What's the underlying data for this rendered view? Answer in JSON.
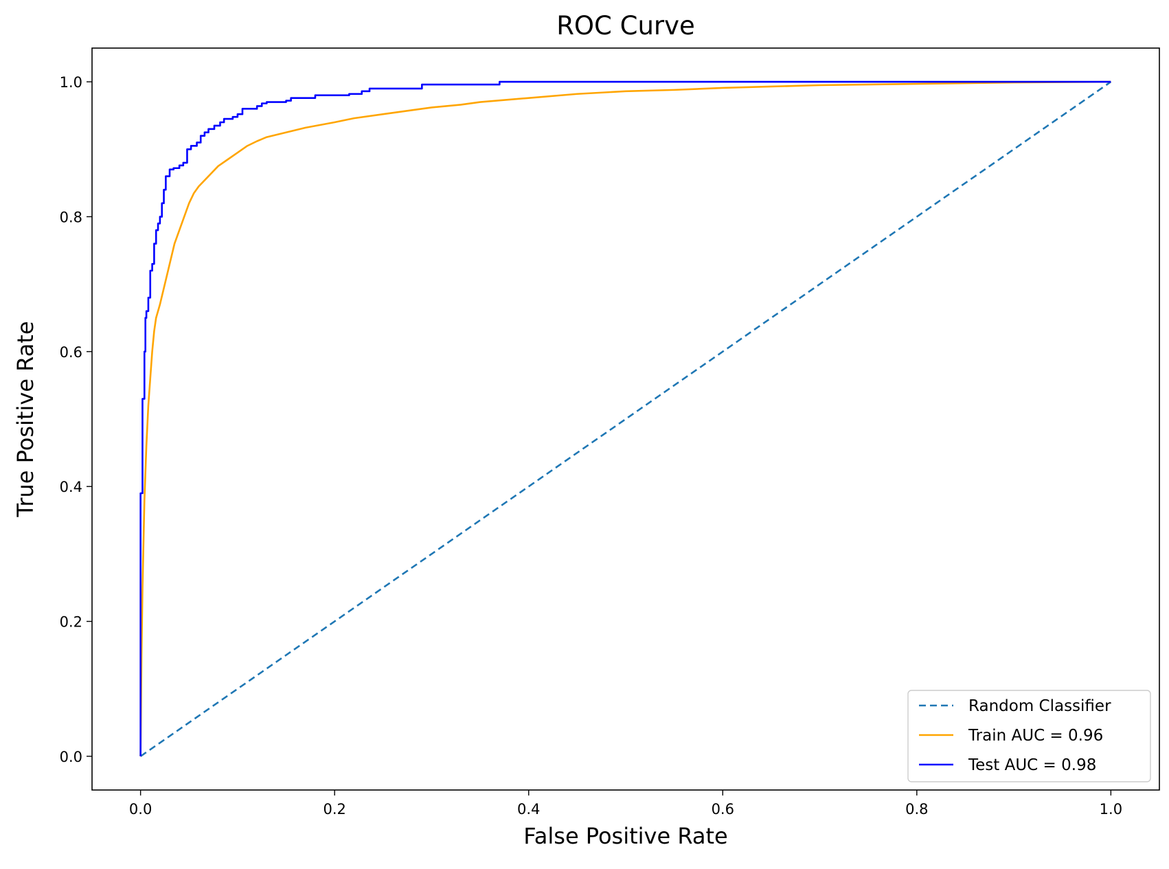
{
  "chart_data": {
    "type": "line",
    "title": "ROC Curve",
    "xlabel": "False Positive Rate",
    "ylabel": "True Positive Rate",
    "xlim": [
      -0.05,
      1.05
    ],
    "ylim": [
      -0.05,
      1.05
    ],
    "xticks": [
      0.0,
      0.2,
      0.4,
      0.6,
      0.8,
      1.0
    ],
    "yticks": [
      0.0,
      0.2,
      0.4,
      0.6,
      0.8,
      1.0
    ],
    "xtick_labels": [
      "0.0",
      "0.2",
      "0.4",
      "0.6",
      "0.8",
      "1.0"
    ],
    "ytick_labels": [
      "0.0",
      "0.2",
      "0.4",
      "0.6",
      "0.8",
      "1.0"
    ],
    "grid": false,
    "legend_position": "bottom-right",
    "series": [
      {
        "name": "Random Classifier",
        "color": "#1f77b4",
        "style": "dashed",
        "points": [
          [
            0.0,
            0.0
          ],
          [
            1.0,
            1.0
          ]
        ]
      },
      {
        "name": "Train AUC = 0.96",
        "color": "#ffa500",
        "style": "solid",
        "points": [
          [
            0.0,
            0.0
          ],
          [
            0.001,
            0.15
          ],
          [
            0.002,
            0.25
          ],
          [
            0.004,
            0.38
          ],
          [
            0.006,
            0.46
          ],
          [
            0.008,
            0.52
          ],
          [
            0.01,
            0.56
          ],
          [
            0.012,
            0.6
          ],
          [
            0.014,
            0.63
          ],
          [
            0.016,
            0.65
          ],
          [
            0.02,
            0.67
          ],
          [
            0.025,
            0.7
          ],
          [
            0.03,
            0.73
          ],
          [
            0.035,
            0.76
          ],
          [
            0.04,
            0.78
          ],
          [
            0.045,
            0.8
          ],
          [
            0.05,
            0.82
          ],
          [
            0.055,
            0.835
          ],
          [
            0.06,
            0.845
          ],
          [
            0.07,
            0.86
          ],
          [
            0.08,
            0.875
          ],
          [
            0.09,
            0.885
          ],
          [
            0.1,
            0.895
          ],
          [
            0.11,
            0.905
          ],
          [
            0.12,
            0.912
          ],
          [
            0.13,
            0.918
          ],
          [
            0.15,
            0.925
          ],
          [
            0.17,
            0.932
          ],
          [
            0.2,
            0.94
          ],
          [
            0.22,
            0.946
          ],
          [
            0.25,
            0.952
          ],
          [
            0.28,
            0.958
          ],
          [
            0.3,
            0.962
          ],
          [
            0.33,
            0.966
          ],
          [
            0.35,
            0.97
          ],
          [
            0.4,
            0.976
          ],
          [
            0.45,
            0.982
          ],
          [
            0.5,
            0.986
          ],
          [
            0.55,
            0.988
          ],
          [
            0.6,
            0.991
          ],
          [
            0.65,
            0.993
          ],
          [
            0.7,
            0.995
          ],
          [
            0.8,
            0.997
          ],
          [
            0.9,
            0.999
          ],
          [
            1.0,
            1.0
          ]
        ]
      },
      {
        "name": "Test AUC = 0.98",
        "color": "#0000ff",
        "style": "solid",
        "points": [
          [
            0.0,
            0.0
          ],
          [
            0.0,
            0.39
          ],
          [
            0.002,
            0.39
          ],
          [
            0.002,
            0.53
          ],
          [
            0.004,
            0.53
          ],
          [
            0.004,
            0.6
          ],
          [
            0.005,
            0.6
          ],
          [
            0.005,
            0.65
          ],
          [
            0.006,
            0.65
          ],
          [
            0.006,
            0.66
          ],
          [
            0.008,
            0.66
          ],
          [
            0.008,
            0.68
          ],
          [
            0.01,
            0.68
          ],
          [
            0.01,
            0.72
          ],
          [
            0.012,
            0.72
          ],
          [
            0.012,
            0.73
          ],
          [
            0.014,
            0.73
          ],
          [
            0.014,
            0.76
          ],
          [
            0.016,
            0.76
          ],
          [
            0.016,
            0.78
          ],
          [
            0.018,
            0.78
          ],
          [
            0.018,
            0.79
          ],
          [
            0.02,
            0.79
          ],
          [
            0.02,
            0.8
          ],
          [
            0.022,
            0.8
          ],
          [
            0.022,
            0.82
          ],
          [
            0.024,
            0.82
          ],
          [
            0.024,
            0.84
          ],
          [
            0.026,
            0.84
          ],
          [
            0.026,
            0.86
          ],
          [
            0.03,
            0.86
          ],
          [
            0.03,
            0.87
          ],
          [
            0.034,
            0.87
          ],
          [
            0.034,
            0.872
          ],
          [
            0.04,
            0.872
          ],
          [
            0.04,
            0.876
          ],
          [
            0.044,
            0.876
          ],
          [
            0.044,
            0.88
          ],
          [
            0.048,
            0.88
          ],
          [
            0.048,
            0.9
          ],
          [
            0.052,
            0.9
          ],
          [
            0.052,
            0.905
          ],
          [
            0.058,
            0.905
          ],
          [
            0.058,
            0.91
          ],
          [
            0.062,
            0.91
          ],
          [
            0.062,
            0.92
          ],
          [
            0.066,
            0.92
          ],
          [
            0.066,
            0.925
          ],
          [
            0.07,
            0.925
          ],
          [
            0.07,
            0.93
          ],
          [
            0.076,
            0.93
          ],
          [
            0.076,
            0.935
          ],
          [
            0.082,
            0.935
          ],
          [
            0.082,
            0.94
          ],
          [
            0.086,
            0.94
          ],
          [
            0.086,
            0.945
          ],
          [
            0.095,
            0.945
          ],
          [
            0.095,
            0.948
          ],
          [
            0.1,
            0.948
          ],
          [
            0.1,
            0.952
          ],
          [
            0.105,
            0.952
          ],
          [
            0.105,
            0.96
          ],
          [
            0.12,
            0.96
          ],
          [
            0.12,
            0.964
          ],
          [
            0.125,
            0.964
          ],
          [
            0.125,
            0.968
          ],
          [
            0.13,
            0.968
          ],
          [
            0.13,
            0.97
          ],
          [
            0.15,
            0.97
          ],
          [
            0.15,
            0.972
          ],
          [
            0.155,
            0.972
          ],
          [
            0.155,
            0.976
          ],
          [
            0.18,
            0.976
          ],
          [
            0.18,
            0.98
          ],
          [
            0.215,
            0.98
          ],
          [
            0.215,
            0.982
          ],
          [
            0.228,
            0.982
          ],
          [
            0.228,
            0.986
          ],
          [
            0.236,
            0.986
          ],
          [
            0.236,
            0.99
          ],
          [
            0.29,
            0.99
          ],
          [
            0.29,
            0.996
          ],
          [
            0.37,
            0.996
          ],
          [
            0.37,
            1.0
          ],
          [
            1.0,
            1.0
          ]
        ]
      }
    ]
  }
}
